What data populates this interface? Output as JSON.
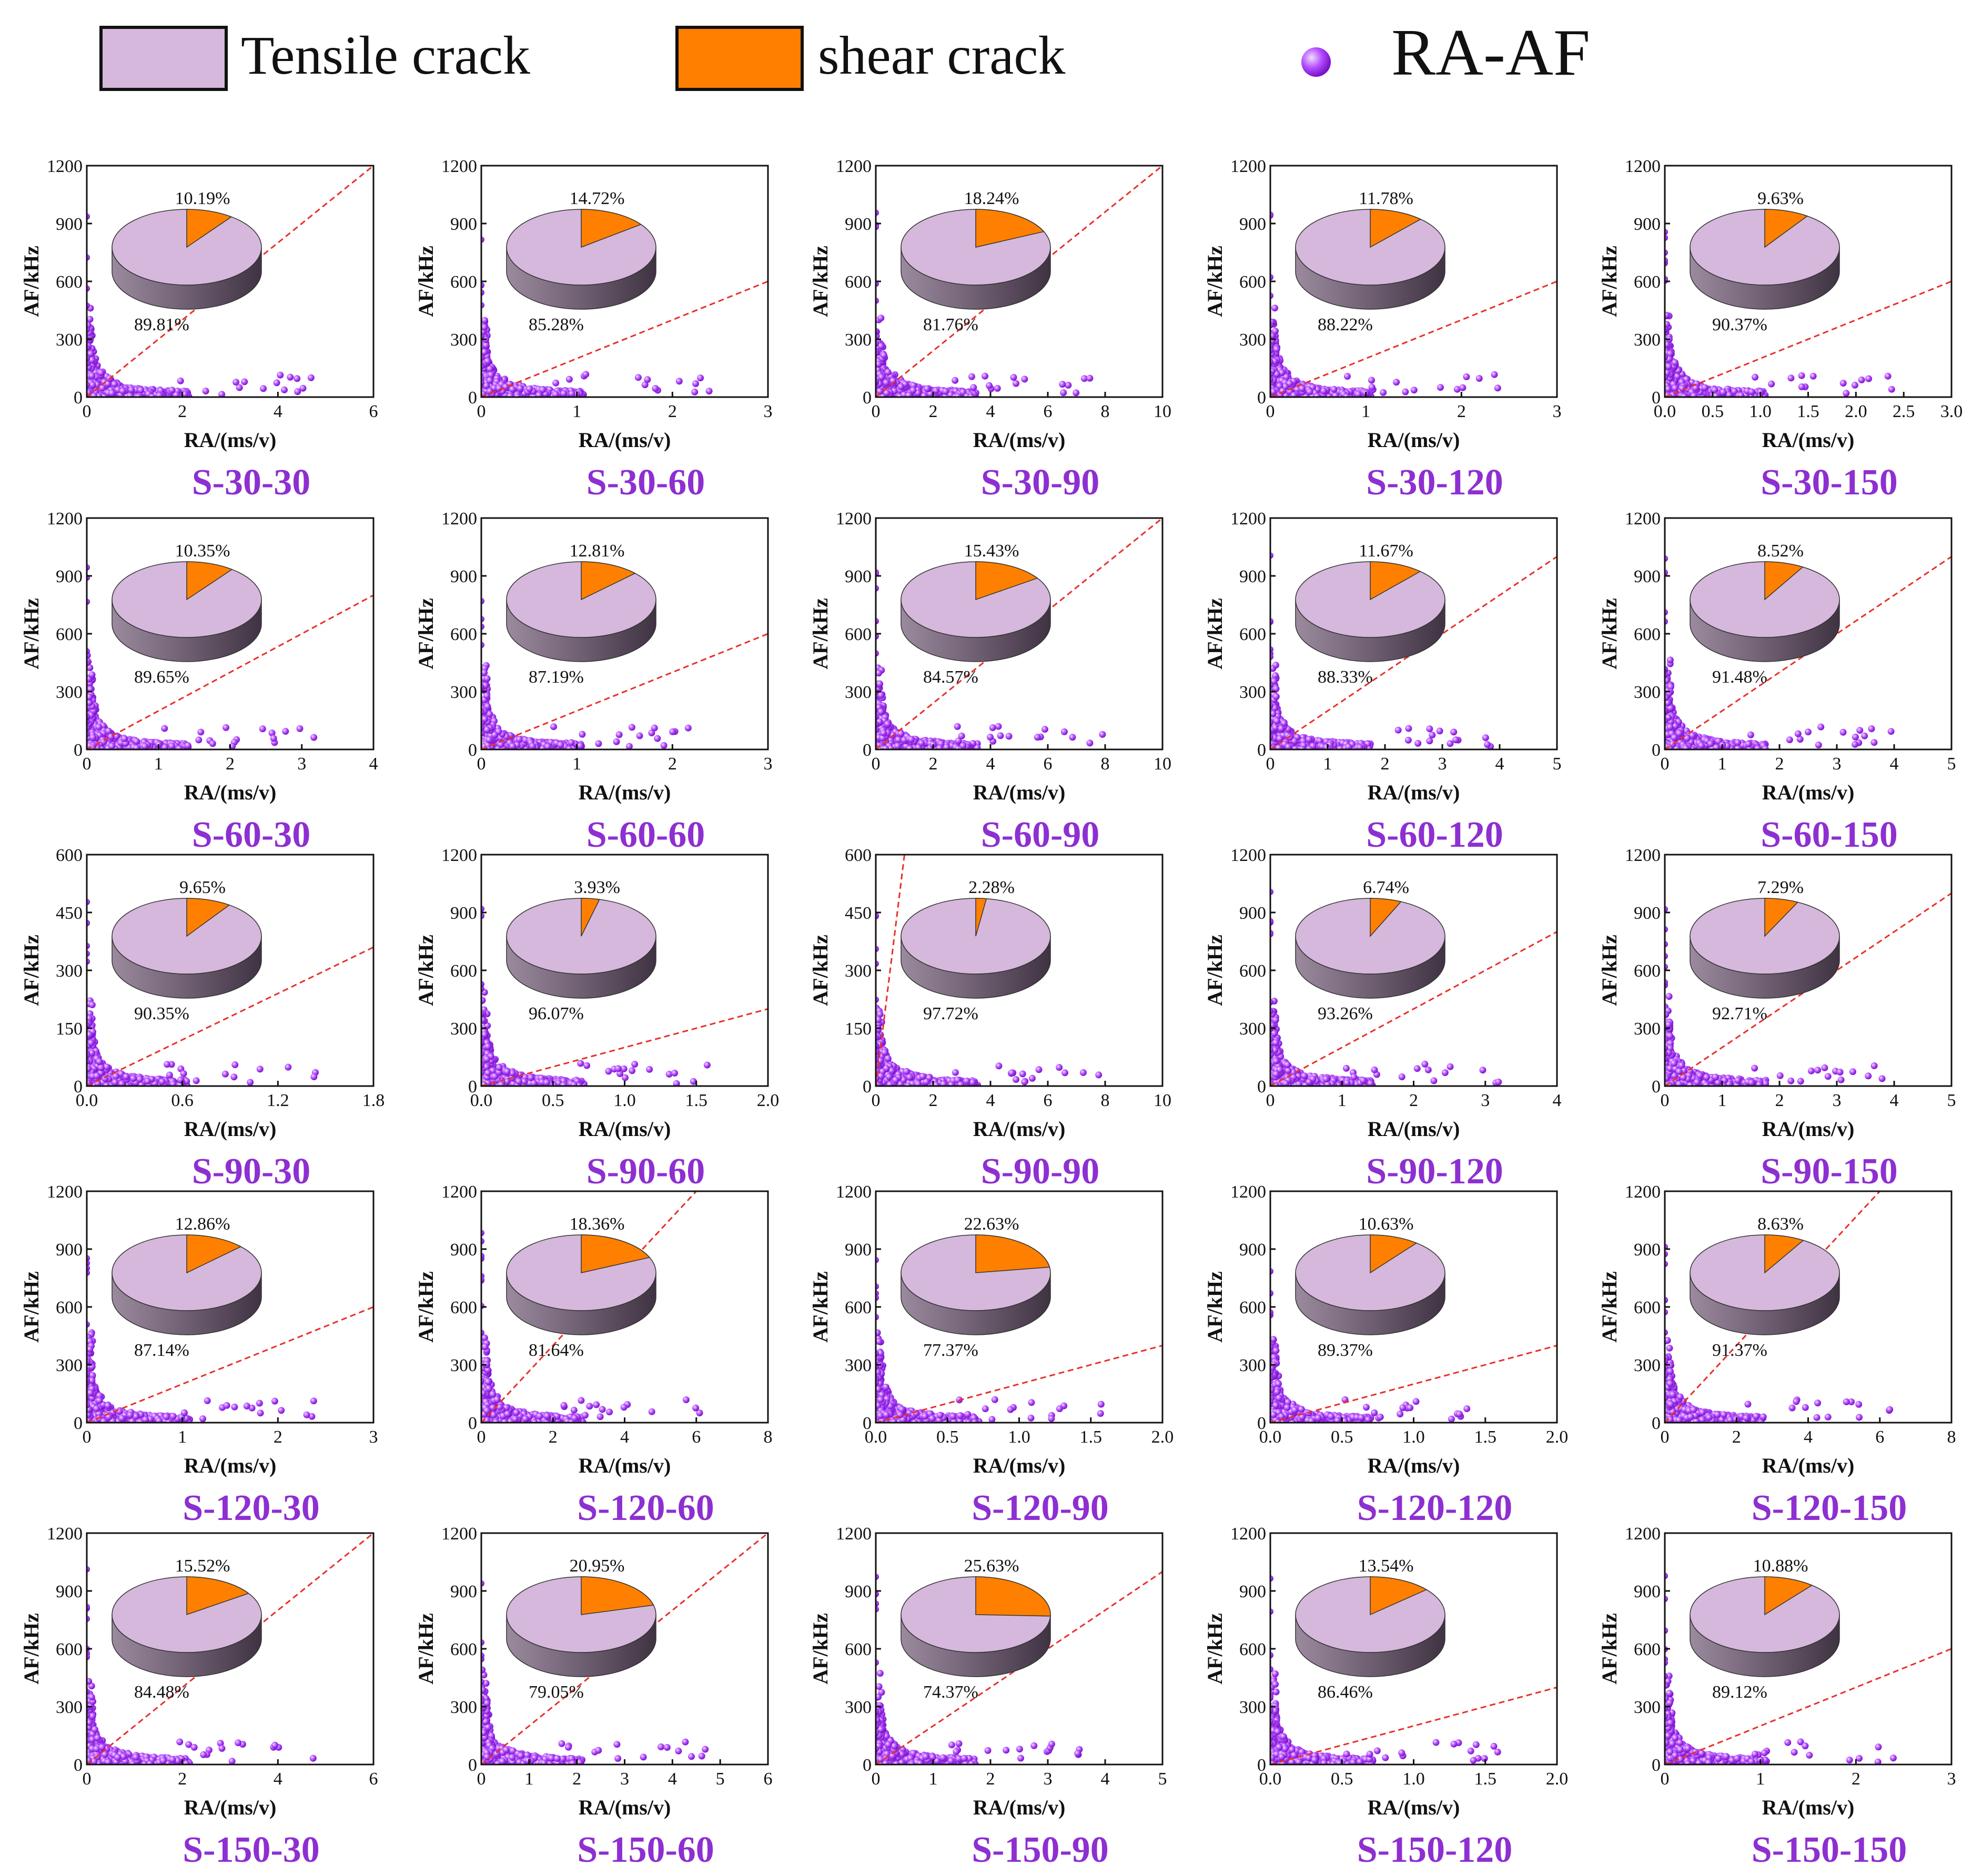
{
  "legend": {
    "tensile_label": "Tensile crack",
    "shear_label": "shear crack",
    "raaf_label": "RA-AF"
  },
  "colors": {
    "tensile": "#d5b8dc",
    "shear": "#ff8000",
    "dots": "#a63cf2",
    "title": "#8e2fd1",
    "reference_line": "#e8302a"
  },
  "chart_data": [
    {
      "type": "scatter",
      "title": "S-30-30",
      "xlabel": "RA/(ms/v)",
      "ylabel": "AF/kHz",
      "xlim": [
        0,
        6
      ],
      "ylim": [
        0,
        1200
      ],
      "xticks": [
        "0",
        "2",
        "4",
        "6"
      ],
      "yticks": [
        "0",
        "300",
        "600",
        "900",
        "1200"
      ],
      "reference_line_end": [
        6,
        1200
      ],
      "pie": {
        "shear": "10.19%",
        "tensile": "89.81%"
      }
    },
    {
      "type": "scatter",
      "title": "S-30-60",
      "xlabel": "RA/(ms/v)",
      "ylabel": "AF/kHz",
      "xlim": [
        0,
        3
      ],
      "ylim": [
        0,
        1200
      ],
      "xticks": [
        "0",
        "1",
        "2",
        "3"
      ],
      "yticks": [
        "0",
        "300",
        "600",
        "900",
        "1200"
      ],
      "reference_line_end": [
        3,
        600
      ],
      "pie": {
        "shear": "14.72%",
        "tensile": "85.28%"
      }
    },
    {
      "type": "scatter",
      "title": "S-30-90",
      "xlabel": "RA/(ms/v)",
      "ylabel": "AF/kHz",
      "xlim": [
        0,
        10
      ],
      "ylim": [
        0,
        1200
      ],
      "xticks": [
        "0",
        "2",
        "4",
        "6",
        "8",
        "10"
      ],
      "yticks": [
        "0",
        "300",
        "600",
        "900",
        "1200"
      ],
      "reference_line_end": [
        10,
        1200
      ],
      "pie": {
        "shear": "18.24%",
        "tensile": "81.76%"
      }
    },
    {
      "type": "scatter",
      "title": "S-30-120",
      "xlabel": "RA/(ms/v)",
      "ylabel": "AF/kHz",
      "xlim": [
        0,
        3
      ],
      "ylim": [
        0,
        1200
      ],
      "xticks": [
        "0",
        "1",
        "2",
        "3"
      ],
      "yticks": [
        "0",
        "300",
        "600",
        "900",
        "1200"
      ],
      "reference_line_end": [
        3,
        600
      ],
      "pie": {
        "shear": "11.78%",
        "tensile": "88.22%"
      }
    },
    {
      "type": "scatter",
      "title": "S-30-150",
      "xlabel": "RA/(ms/v)",
      "ylabel": "AF/kHz",
      "xlim": [
        0,
        3
      ],
      "ylim": [
        0,
        1200
      ],
      "xticks": [
        "0.0",
        "0.5",
        "1.0",
        "1.5",
        "2.0",
        "2.5",
        "3.0"
      ],
      "yticks": [
        "0",
        "300",
        "600",
        "900",
        "1200"
      ],
      "reference_line_end": [
        3,
        600
      ],
      "pie": {
        "shear": "9.63%",
        "tensile": "90.37%"
      }
    },
    {
      "type": "scatter",
      "title": "S-60-30",
      "xlabel": "RA/(ms/v)",
      "ylabel": "AF/kHz",
      "xlim": [
        0,
        4
      ],
      "ylim": [
        0,
        1200
      ],
      "xticks": [
        "0",
        "1",
        "2",
        "3",
        "4"
      ],
      "yticks": [
        "0",
        "300",
        "600",
        "900",
        "1200"
      ],
      "reference_line_end": [
        4,
        800
      ],
      "pie": {
        "shear": "10.35%",
        "tensile": "89.65%"
      }
    },
    {
      "type": "scatter",
      "title": "S-60-60",
      "xlabel": "RA/(ms/v)",
      "ylabel": "AF/kHz",
      "xlim": [
        0,
        3
      ],
      "ylim": [
        0,
        1200
      ],
      "xticks": [
        "0",
        "1",
        "2",
        "3"
      ],
      "yticks": [
        "0",
        "300",
        "600",
        "900",
        "1200"
      ],
      "reference_line_end": [
        3,
        600
      ],
      "pie": {
        "shear": "12.81%",
        "tensile": "87.19%"
      }
    },
    {
      "type": "scatter",
      "title": "S-60-90",
      "xlabel": "RA/(ms/v)",
      "ylabel": "AF/kHz",
      "xlim": [
        0,
        10
      ],
      "ylim": [
        0,
        1200
      ],
      "xticks": [
        "0",
        "2",
        "4",
        "6",
        "8",
        "10"
      ],
      "yticks": [
        "0",
        "300",
        "600",
        "900",
        "1200"
      ],
      "reference_line_end": [
        10,
        1200
      ],
      "pie": {
        "shear": "15.43%",
        "tensile": "84.57%"
      }
    },
    {
      "type": "scatter",
      "title": "S-60-120",
      "xlabel": "RA/(ms/v)",
      "ylabel": "AF/kHz",
      "xlim": [
        0,
        5
      ],
      "ylim": [
        0,
        1200
      ],
      "xticks": [
        "0",
        "1",
        "2",
        "3",
        "4",
        "5"
      ],
      "yticks": [
        "0",
        "300",
        "600",
        "900",
        "1200"
      ],
      "reference_line_end": [
        5,
        1000
      ],
      "pie": {
        "shear": "11.67%",
        "tensile": "88.33%"
      }
    },
    {
      "type": "scatter",
      "title": "S-60-150",
      "xlabel": "RA/(ms/v)",
      "ylabel": "AF/kHz",
      "xlim": [
        0,
        5
      ],
      "ylim": [
        0,
        1200
      ],
      "xticks": [
        "0",
        "1",
        "2",
        "3",
        "4",
        "5"
      ],
      "yticks": [
        "0",
        "300",
        "600",
        "900",
        "1200"
      ],
      "reference_line_end": [
        5,
        1000
      ],
      "pie": {
        "shear": "8.52%",
        "tensile": "91.48%"
      }
    },
    {
      "type": "scatter",
      "title": "S-90-30",
      "xlabel": "RA/(ms/v)",
      "ylabel": "AF/kHz",
      "xlim": [
        0,
        1.8
      ],
      "ylim": [
        0,
        600
      ],
      "xticks": [
        "0.0",
        "0.6",
        "1.2",
        "1.8"
      ],
      "yticks": [
        "0",
        "150",
        "300",
        "450",
        "600"
      ],
      "reference_line_end": [
        1.8,
        360
      ],
      "pie": {
        "shear": "9.65%",
        "tensile": "90.35%"
      }
    },
    {
      "type": "scatter",
      "title": "S-90-60",
      "xlabel": "RA/(ms/v)",
      "ylabel": "AF/kHz",
      "xlim": [
        0,
        2
      ],
      "ylim": [
        0,
        1200
      ],
      "xticks": [
        "0.0",
        "0.5",
        "1.0",
        "1.5",
        "2.0"
      ],
      "yticks": [
        "0",
        "300",
        "600",
        "900",
        "1200"
      ],
      "reference_line_end": [
        2,
        400
      ],
      "pie": {
        "shear": "3.93%",
        "tensile": "96.07%"
      }
    },
    {
      "type": "scatter",
      "title": "S-90-90",
      "xlabel": "RA/(ms/v)",
      "ylabel": "AF/kHz",
      "xlim": [
        0,
        10
      ],
      "ylim": [
        0,
        600
      ],
      "xticks": [
        "0",
        "2",
        "4",
        "6",
        "8",
        "10"
      ],
      "yticks": [
        "0",
        "150",
        "300",
        "450",
        "600"
      ],
      "reference_line_end": [
        10,
        6000
      ],
      "pie": {
        "shear": "2.28%",
        "tensile": "97.72%"
      }
    },
    {
      "type": "scatter",
      "title": "S-90-120",
      "xlabel": "RA/(ms/v)",
      "ylabel": "AF/kHz",
      "xlim": [
        0,
        4
      ],
      "ylim": [
        0,
        1200
      ],
      "xticks": [
        "0",
        "1",
        "2",
        "3",
        "4"
      ],
      "yticks": [
        "0",
        "300",
        "600",
        "900",
        "1200"
      ],
      "reference_line_end": [
        4,
        800
      ],
      "pie": {
        "shear": "6.74%",
        "tensile": "93.26%"
      }
    },
    {
      "type": "scatter",
      "title": "S-90-150",
      "xlabel": "RA/(ms/v)",
      "ylabel": "AF/kHz",
      "xlim": [
        0,
        5
      ],
      "ylim": [
        0,
        1200
      ],
      "xticks": [
        "0",
        "1",
        "2",
        "3",
        "4",
        "5"
      ],
      "yticks": [
        "0",
        "300",
        "600",
        "900",
        "1200"
      ],
      "reference_line_end": [
        5,
        1000
      ],
      "pie": {
        "shear": "7.29%",
        "tensile": "92.71%"
      }
    },
    {
      "type": "scatter",
      "title": "S-120-30",
      "xlabel": "RA/(ms/v)",
      "ylabel": "AF/kHz",
      "xlim": [
        0,
        3
      ],
      "ylim": [
        0,
        1200
      ],
      "xticks": [
        "0",
        "1",
        "2",
        "3"
      ],
      "yticks": [
        "0",
        "300",
        "600",
        "900",
        "1200"
      ],
      "reference_line_end": [
        3,
        600
      ],
      "pie": {
        "shear": "12.86%",
        "tensile": "87.14%"
      }
    },
    {
      "type": "scatter",
      "title": "S-120-60",
      "xlabel": "RA/(ms/v)",
      "ylabel": "AF/kHz",
      "xlim": [
        0,
        8
      ],
      "ylim": [
        0,
        1200
      ],
      "xticks": [
        "0",
        "2",
        "4",
        "6",
        "8"
      ],
      "yticks": [
        "0",
        "300",
        "600",
        "900",
        "1200"
      ],
      "reference_line_end": [
        8,
        1600
      ],
      "pie": {
        "shear": "18.36%",
        "tensile": "81.64%"
      }
    },
    {
      "type": "scatter",
      "title": "S-120-90",
      "xlabel": "RA/(ms/v)",
      "ylabel": "AF/kHz",
      "xlim": [
        0,
        2
      ],
      "ylim": [
        0,
        1200
      ],
      "xticks": [
        "0.0",
        "0.5",
        "1.0",
        "1.5",
        "2.0"
      ],
      "yticks": [
        "0",
        "300",
        "600",
        "900",
        "1200"
      ],
      "reference_line_end": [
        2,
        400
      ],
      "pie": {
        "shear": "22.63%",
        "tensile": "77.37%"
      }
    },
    {
      "type": "scatter",
      "title": "S-120-120",
      "xlabel": "RA/(ms/v)",
      "ylabel": "AF/kHz",
      "xlim": [
        0,
        2
      ],
      "ylim": [
        0,
        1200
      ],
      "xticks": [
        "0.0",
        "0.5",
        "1.0",
        "1.5",
        "2.0"
      ],
      "yticks": [
        "0",
        "300",
        "600",
        "900",
        "1200"
      ],
      "reference_line_end": [
        2,
        400
      ],
      "pie": {
        "shear": "10.63%",
        "tensile": "89.37%"
      }
    },
    {
      "type": "scatter",
      "title": "S-120-150",
      "xlabel": "RA/(ms/v)",
      "ylabel": "AF/kHz",
      "xlim": [
        0,
        8
      ],
      "ylim": [
        0,
        1200
      ],
      "xticks": [
        "0",
        "2",
        "4",
        "6",
        "8"
      ],
      "yticks": [
        "0",
        "300",
        "600",
        "900",
        "1200"
      ],
      "reference_line_end": [
        8,
        1600
      ],
      "pie": {
        "shear": "8.63%",
        "tensile": "91.37%"
      }
    },
    {
      "type": "scatter",
      "title": "S-150-30",
      "xlabel": "RA/(ms/v)",
      "ylabel": "AF/kHz",
      "xlim": [
        0,
        6
      ],
      "ylim": [
        0,
        1200
      ],
      "xticks": [
        "0",
        "2",
        "4",
        "6"
      ],
      "yticks": [
        "0",
        "300",
        "600",
        "900",
        "1200"
      ],
      "reference_line_end": [
        6,
        1200
      ],
      "pie": {
        "shear": "15.52%",
        "tensile": "84.48%"
      }
    },
    {
      "type": "scatter",
      "title": "S-150-60",
      "xlabel": "RA/(ms/v)",
      "ylabel": "AF/kHz",
      "xlim": [
        0,
        6
      ],
      "ylim": [
        0,
        1200
      ],
      "xticks": [
        "0",
        "1",
        "2",
        "3",
        "4",
        "5",
        "6"
      ],
      "yticks": [
        "0",
        "300",
        "600",
        "900",
        "1200"
      ],
      "reference_line_end": [
        6,
        1200
      ],
      "pie": {
        "shear": "20.95%",
        "tensile": "79.05%"
      }
    },
    {
      "type": "scatter",
      "title": "S-150-90",
      "xlabel": "RA/(ms/v)",
      "ylabel": "AF/kHz",
      "xlim": [
        0,
        5
      ],
      "ylim": [
        0,
        1200
      ],
      "xticks": [
        "0",
        "1",
        "2",
        "3",
        "4",
        "5"
      ],
      "yticks": [
        "0",
        "300",
        "600",
        "900",
        "1200"
      ],
      "reference_line_end": [
        5,
        1000
      ],
      "pie": {
        "shear": "25.63%",
        "tensile": "74.37%"
      }
    },
    {
      "type": "scatter",
      "title": "S-150-120",
      "xlabel": "RA/(ms/v)",
      "ylabel": "AF/kHz",
      "xlim": [
        0,
        2
      ],
      "ylim": [
        0,
        1200
      ],
      "xticks": [
        "0.0",
        "0.5",
        "1.0",
        "1.5",
        "2.0"
      ],
      "yticks": [
        "0",
        "300",
        "600",
        "900",
        "1200"
      ],
      "reference_line_end": [
        2,
        400
      ],
      "pie": {
        "shear": "13.54%",
        "tensile": "86.46%"
      }
    },
    {
      "type": "scatter",
      "title": "S-150-150",
      "xlabel": "RA/(ms/v)",
      "ylabel": "AF/kHz",
      "xlim": [
        0,
        3
      ],
      "ylim": [
        0,
        1200
      ],
      "xticks": [
        "0",
        "1",
        "2",
        "3"
      ],
      "yticks": [
        "0",
        "300",
        "600",
        "900",
        "1200"
      ],
      "reference_line_end": [
        3,
        600
      ],
      "pie": {
        "shear": "10.88%",
        "tensile": "89.12%"
      }
    }
  ]
}
